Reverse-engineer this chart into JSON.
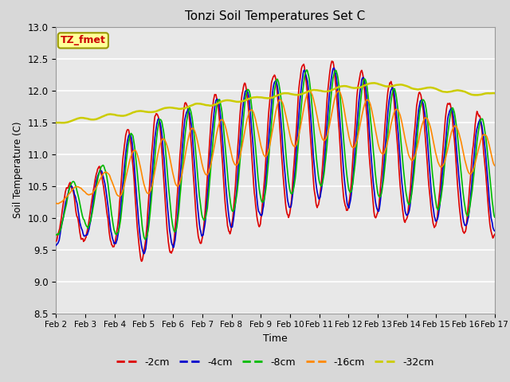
{
  "title": "Tonzi Soil Temperatures Set C",
  "xlabel": "Time",
  "ylabel": "Soil Temperature (C)",
  "annotation": "TZ_fmet",
  "annotation_color": "#cc0000",
  "annotation_bg": "#ffff99",
  "annotation_border": "#999900",
  "ylim": [
    8.5,
    13.0
  ],
  "yticks": [
    8.5,
    9.0,
    9.5,
    10.0,
    10.5,
    11.0,
    11.5,
    12.0,
    12.5,
    13.0
  ],
  "xtick_labels": [
    "Feb 2",
    "Feb 3",
    "Feb 4",
    "Feb 5",
    "Feb 6",
    "Feb 7",
    "Feb 8",
    "Feb 9",
    "Feb 10",
    "Feb 11",
    "Feb 12",
    "Feb 13",
    "Feb 14",
    "Feb 15",
    "Feb 16",
    "Feb 17"
  ],
  "series_colors": [
    "#dd0000",
    "#0000cc",
    "#00bb00",
    "#ff8800",
    "#cccc00"
  ],
  "series_lw": [
    1.2,
    1.2,
    1.2,
    1.2,
    1.8
  ],
  "bg_color": "#d8d8d8",
  "plot_bg": "#e8e8e8",
  "grid_color": "#ffffff",
  "legend_labels": [
    "-2cm",
    "-4cm",
    "-8cm",
    "-16cm",
    "-32cm"
  ],
  "legend_colors": [
    "#dd0000",
    "#0000cc",
    "#00bb00",
    "#ff8800",
    "#cccc00"
  ]
}
